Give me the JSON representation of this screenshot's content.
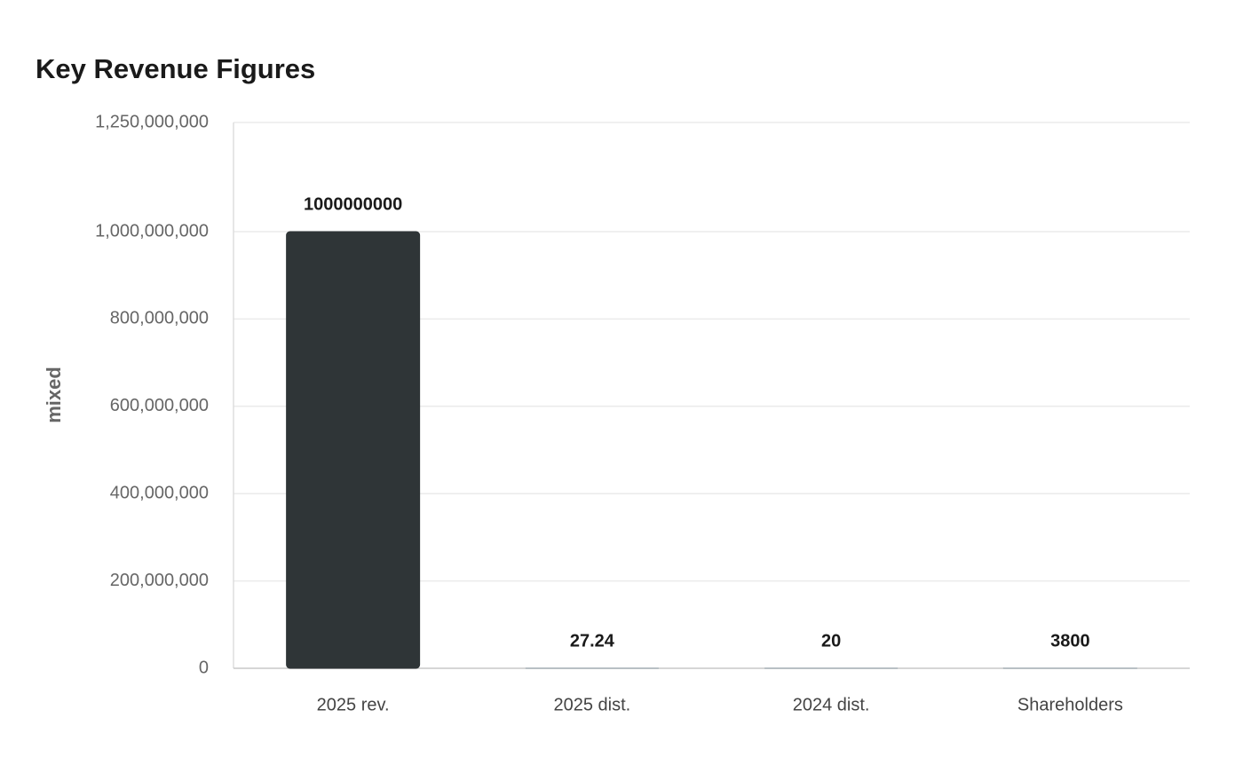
{
  "chart_data": {
    "type": "bar",
    "title": "Key Revenue Figures",
    "y_label": "mixed",
    "categories": [
      "2025 rev.",
      "2025 dist.",
      "2024 dist.",
      "Shareholders"
    ],
    "values": [
      1000000000,
      27.24,
      20,
      3800
    ],
    "colors": [
      "#2f3537",
      "#8fa0a8",
      "#8fa0a8",
      "#8fa0a8"
    ],
    "ylim": [
      0,
      1250000000
    ],
    "yticks": [
      0,
      {
        "value": 200000000,
        "label": "200,000,000"
      },
      {
        "value": 400000000,
        "label": "400,000,000"
      },
      {
        "value": 600000000,
        "label": "600,000,000"
      },
      {
        "value": 800000000,
        "label": "800,000,000"
      },
      {
        "value": 1000000000,
        "label": "1,000,000,000"
      },
      {
        "value": 1250000000,
        "label": "1,250,000,000"
      }
    ],
    "grid": true
  }
}
